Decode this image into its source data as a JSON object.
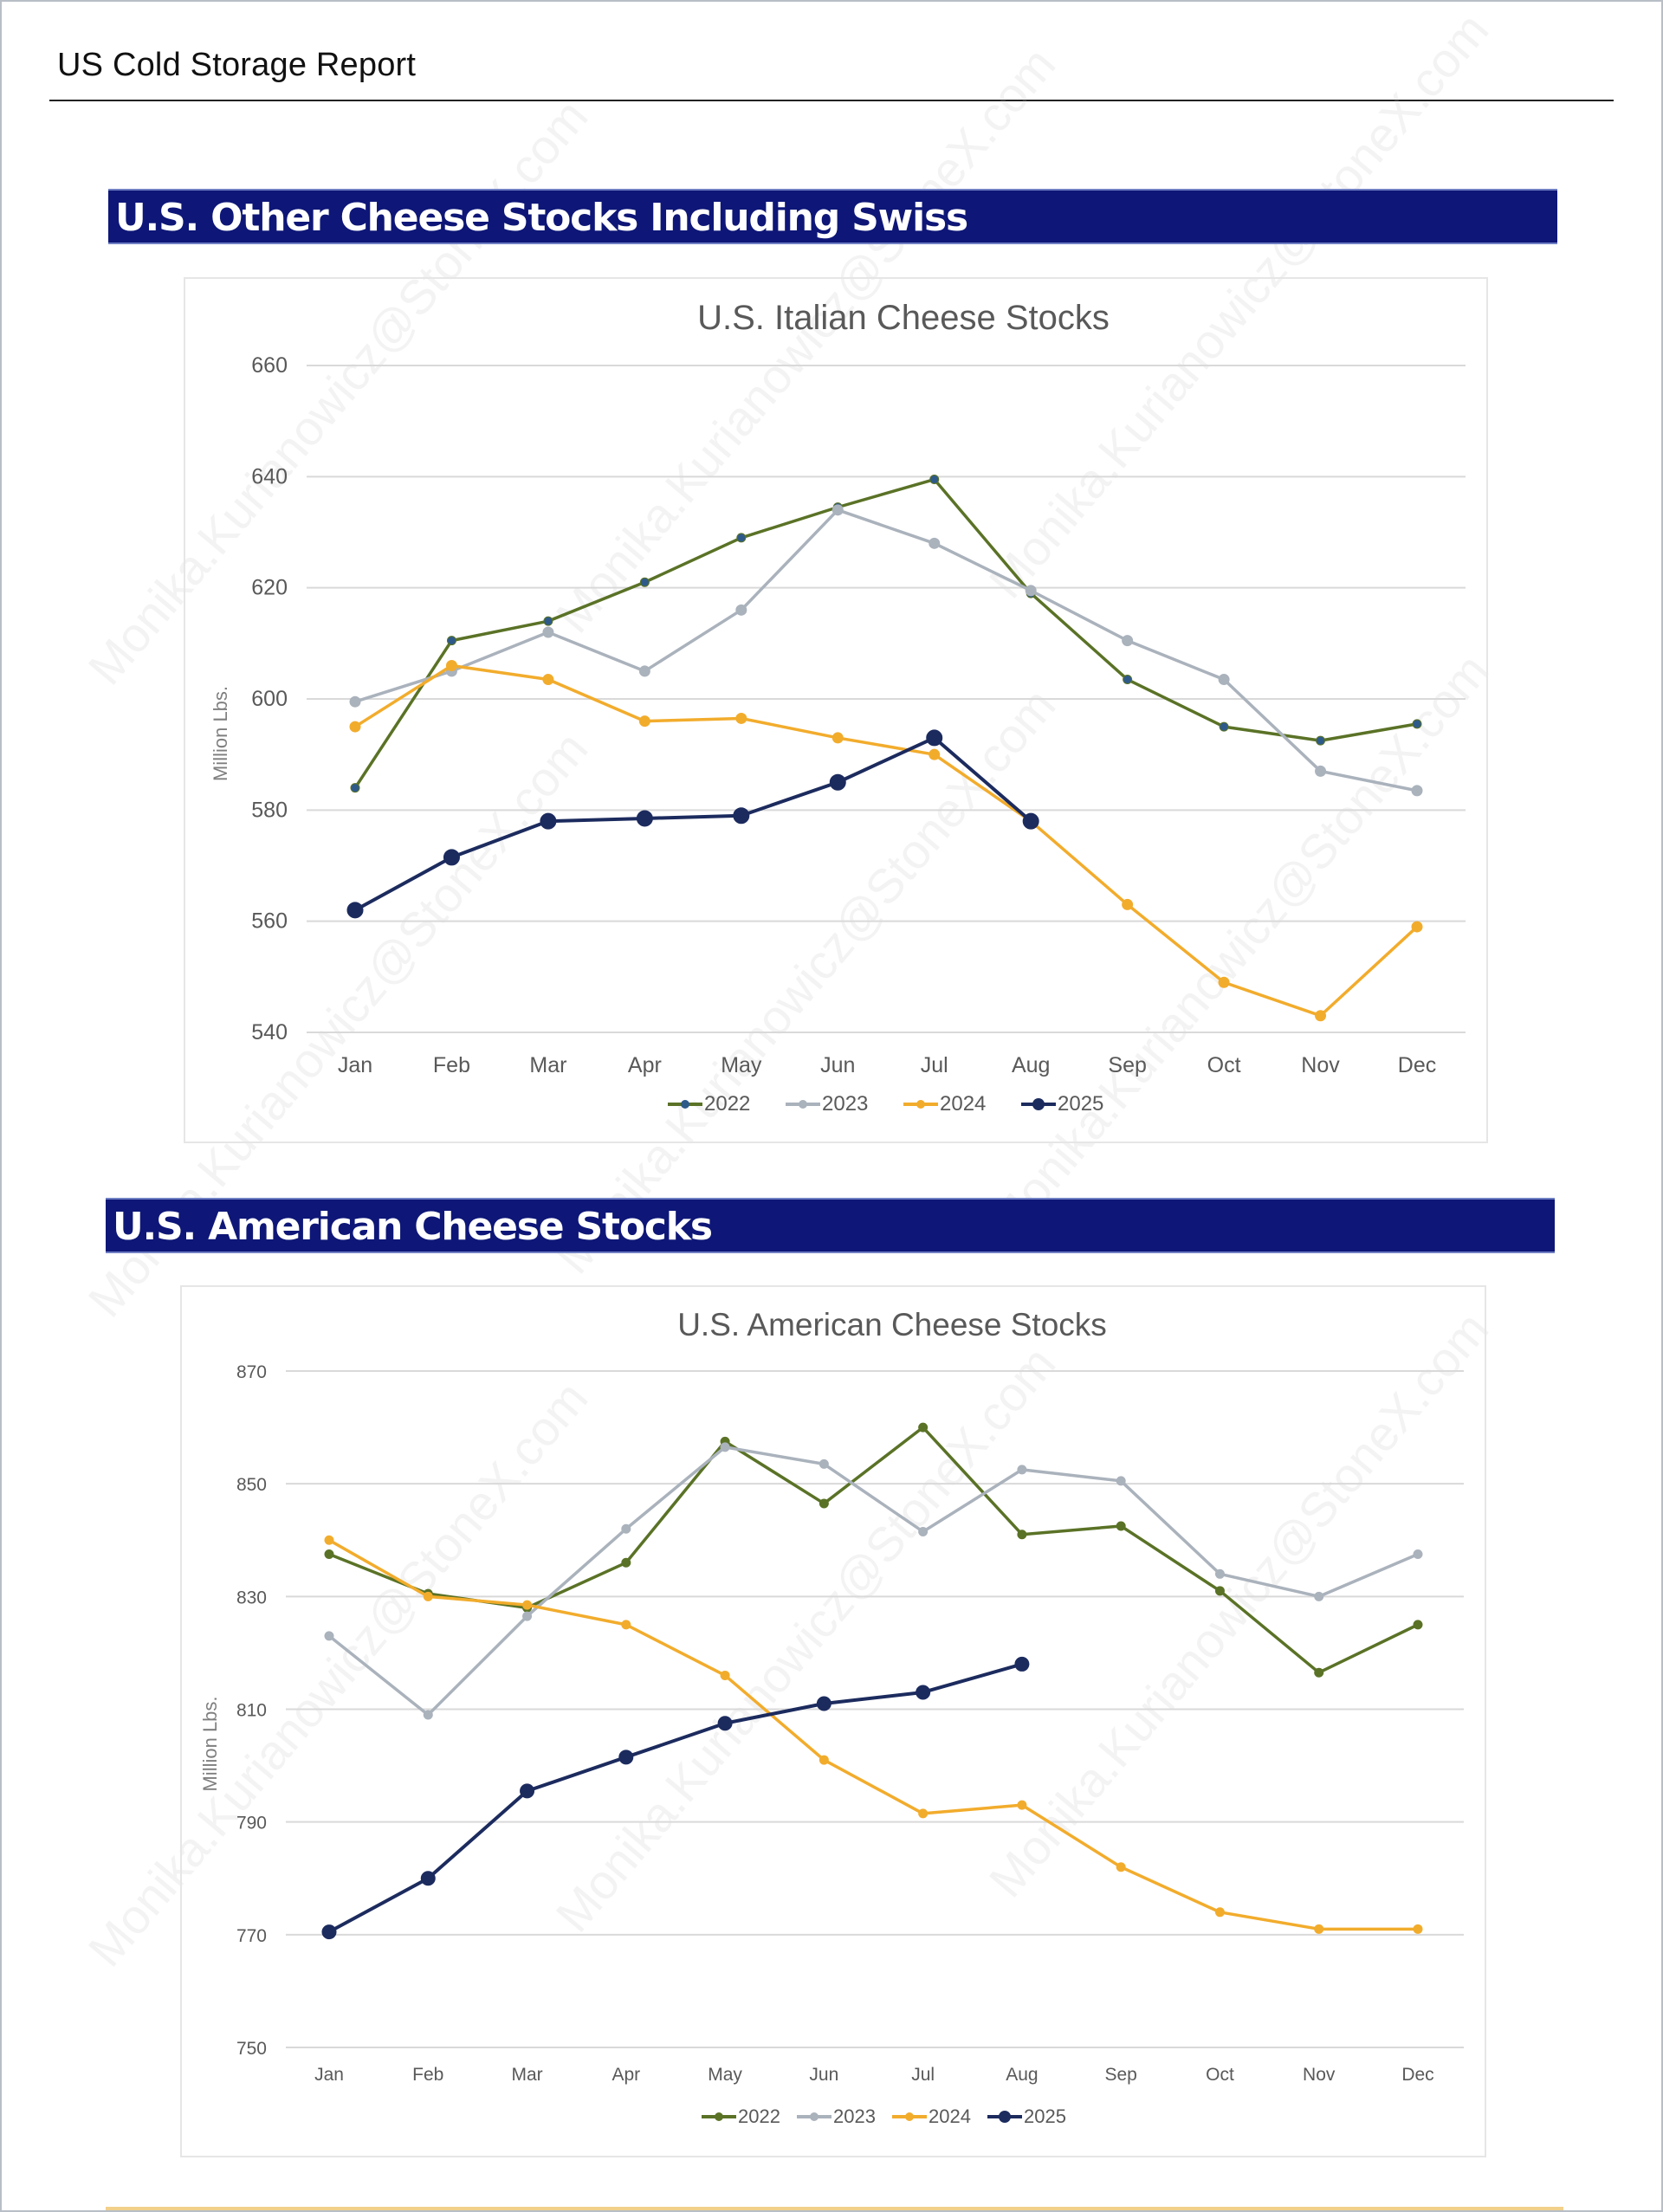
{
  "page": {
    "title": "US Cold Storage Report",
    "watermark": "Monika.Kurianowicz@StoneX.com"
  },
  "sections": [
    {
      "heading": "U.S. Other Cheese Stocks Including Swiss"
    },
    {
      "heading": "U.S. American Cheese Stocks"
    }
  ],
  "colors": {
    "2022": "#5a7226",
    "2023": "#aab2bc",
    "2024": "#f2ac2c",
    "2025": "#1c2b5e",
    "section_bar": "#0e1777",
    "gridline": "#d9d9d9",
    "axis_text": "#595959"
  },
  "chart_data": [
    {
      "type": "line",
      "title": "U.S. Italian Cheese Stocks",
      "xlabel": "",
      "ylabel": "Million Lbs.",
      "ylim": [
        540,
        660
      ],
      "yticks": [
        540,
        560,
        580,
        600,
        620,
        640,
        660
      ],
      "grid": true,
      "legend": "bottom-center",
      "categories": [
        "Jan",
        "Feb",
        "Mar",
        "Apr",
        "May",
        "Jun",
        "Jul",
        "Aug",
        "Sep",
        "Oct",
        "Nov",
        "Dec"
      ],
      "series": [
        {
          "name": "2022",
          "values": [
            584,
            610.5,
            614,
            621,
            629,
            634.5,
            639.5,
            619,
            603.5,
            595,
            592.5,
            595.5
          ]
        },
        {
          "name": "2023",
          "values": [
            599.5,
            605,
            612,
            605,
            616,
            634,
            628,
            619.5,
            610.5,
            603.5,
            587,
            583.5
          ]
        },
        {
          "name": "2024",
          "values": [
            595,
            606,
            603.5,
            596,
            596.5,
            593,
            590,
            578,
            563,
            549,
            543,
            559
          ]
        },
        {
          "name": "2025",
          "values": [
            562,
            571.5,
            578,
            578.5,
            579,
            585,
            593,
            578,
            null,
            null,
            null,
            null
          ]
        }
      ]
    },
    {
      "type": "line",
      "title": "U.S. American Cheese Stocks",
      "xlabel": "",
      "ylabel": "Million Lbs.",
      "ylim": [
        750,
        870
      ],
      "yticks": [
        750,
        770,
        790,
        810,
        830,
        850,
        870
      ],
      "grid": true,
      "legend": "bottom-center",
      "categories": [
        "Jan",
        "Feb",
        "Mar",
        "Apr",
        "May",
        "Jun",
        "Jul",
        "Aug",
        "Sep",
        "Oct",
        "Nov",
        "Dec"
      ],
      "series": [
        {
          "name": "2022",
          "values": [
            837.5,
            830.5,
            828,
            836,
            857.5,
            846.5,
            860,
            841,
            842.5,
            831,
            816.5,
            825
          ]
        },
        {
          "name": "2023",
          "values": [
            823,
            809,
            826.5,
            842,
            856.5,
            853.5,
            841.5,
            852.5,
            850.5,
            834,
            830,
            837.5
          ]
        },
        {
          "name": "2024",
          "values": [
            840,
            830,
            828.5,
            825,
            816,
            801,
            791.5,
            793,
            782,
            774,
            771,
            771
          ]
        },
        {
          "name": "2025",
          "values": [
            770.5,
            780,
            795.5,
            801.5,
            807.5,
            811,
            813,
            818,
            null,
            null,
            null,
            null
          ]
        }
      ]
    }
  ]
}
